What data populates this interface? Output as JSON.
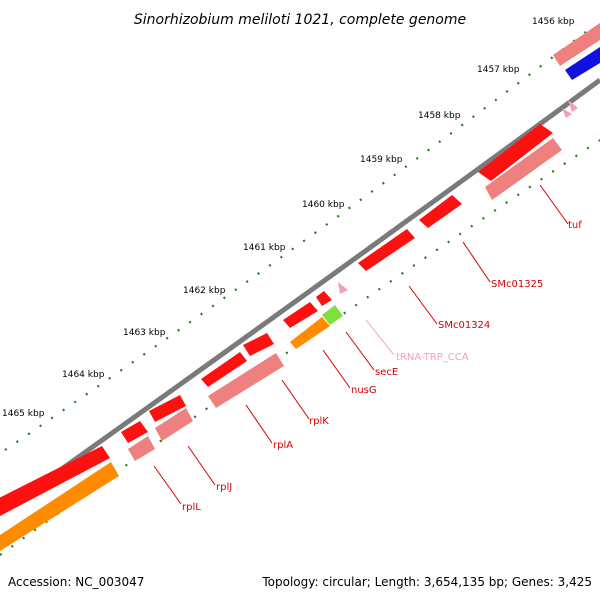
{
  "title": "Sinorhizobium meliloti 1021, complete genome",
  "footer": {
    "accession": "Accession: NC_003047",
    "summary": "Topology: circular; Length: 3,654,135 bp; Genes: 3,425"
  },
  "ticks": [
    "1456 kbp",
    "1457 kbp",
    "1458 kbp",
    "1459 kbp",
    "1460 kbp",
    "1461 kbp",
    "1462 kbp",
    "1463 kbp",
    "1464 kbp",
    "1465 kbp"
  ],
  "genes": [
    "tuf",
    "SMc01325",
    "SMc01324",
    "tRNA-TRP_CCA",
    "secE",
    "nusG",
    "rplK",
    "rplA",
    "rplJ",
    "rplL"
  ],
  "colors": {
    "cds": "#ff0000",
    "cds_light": "#f08080",
    "rrna": "#ff8c00",
    "trna": "#f29ec4",
    "misc": "#7ee03a",
    "blue": "#0000ee",
    "backbone": "#808080",
    "tick_major": "#1e7d1e"
  }
}
